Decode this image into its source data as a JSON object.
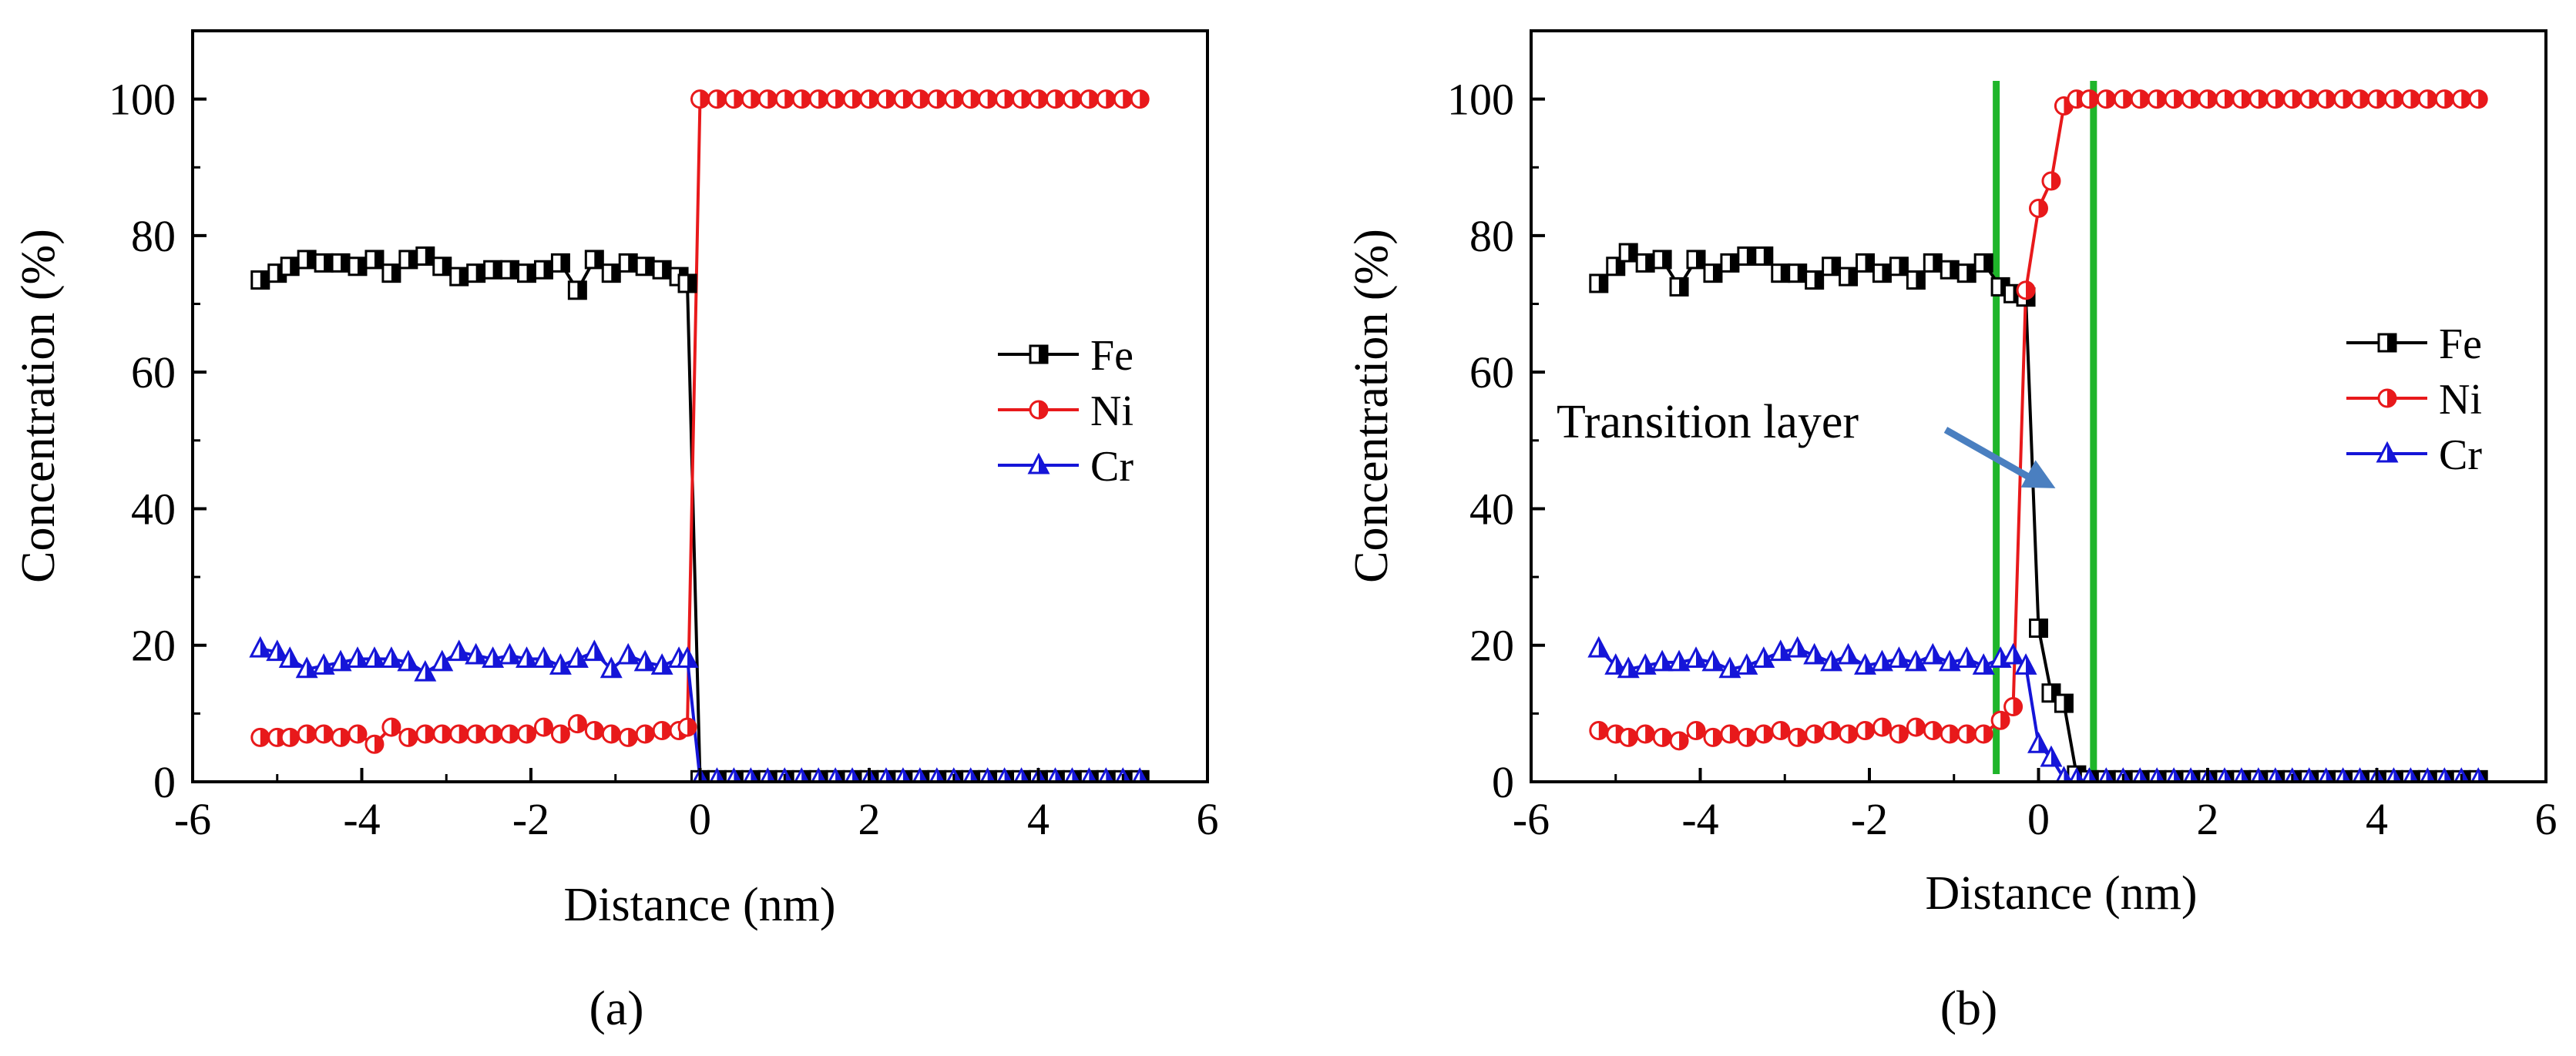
{
  "chart_data": [
    {
      "panel_label": "(a)",
      "type": "line",
      "xlabel": "Distance (nm)",
      "ylabel": "Concentration (%)",
      "xlim": [
        -6,
        6
      ],
      "ylim": [
        0,
        110
      ],
      "xticks": [
        -6,
        -4,
        -2,
        0,
        2,
        4,
        6
      ],
      "yticks": [
        0,
        20,
        40,
        60,
        80,
        100
      ],
      "legend_position": "right",
      "series": [
        {
          "name": "Fe",
          "color": "#000000",
          "marker": "square-half",
          "x": [
            -5.2,
            -5.0,
            -4.85,
            -4.65,
            -4.45,
            -4.25,
            -4.05,
            -3.85,
            -3.65,
            -3.45,
            -3.25,
            -3.05,
            -2.85,
            -2.65,
            -2.45,
            -2.25,
            -2.05,
            -1.85,
            -1.65,
            -1.45,
            -1.25,
            -1.05,
            -0.85,
            -0.65,
            -0.45,
            -0.25,
            -0.15,
            0.0,
            0.2,
            0.4,
            0.6,
            0.8,
            1.0,
            1.2,
            1.4,
            1.6,
            1.8,
            2.0,
            2.2,
            2.4,
            2.6,
            2.8,
            3.0,
            3.2,
            3.4,
            3.6,
            3.8,
            4.0,
            4.2,
            4.4,
            4.6,
            4.8,
            5.0,
            5.2
          ],
          "values": [
            73.5,
            74.5,
            75.5,
            76.5,
            76,
            76,
            75.5,
            76.5,
            74.5,
            76.5,
            77,
            75.5,
            74,
            74.5,
            75,
            75,
            74.5,
            75,
            76,
            72,
            76.5,
            74.5,
            76,
            75.5,
            75,
            74,
            73,
            0.3,
            0.3,
            0.3,
            0.3,
            0.3,
            0.3,
            0.3,
            0.3,
            0.3,
            0.3,
            0.3,
            0.3,
            0.3,
            0.3,
            0.3,
            0.3,
            0.3,
            0.3,
            0.3,
            0.3,
            0.3,
            0.3,
            0.3,
            0.3,
            0.3,
            0.3,
            0.3
          ]
        },
        {
          "name": "Ni",
          "color": "#e8191b",
          "marker": "circle-half",
          "x": [
            -5.2,
            -5.0,
            -4.85,
            -4.65,
            -4.45,
            -4.25,
            -4.05,
            -3.85,
            -3.65,
            -3.45,
            -3.25,
            -3.05,
            -2.85,
            -2.65,
            -2.45,
            -2.25,
            -2.05,
            -1.85,
            -1.65,
            -1.45,
            -1.25,
            -1.05,
            -0.85,
            -0.65,
            -0.45,
            -0.25,
            -0.15,
            0.0,
            0.2,
            0.4,
            0.6,
            0.8,
            1.0,
            1.2,
            1.4,
            1.6,
            1.8,
            2.0,
            2.2,
            2.4,
            2.6,
            2.8,
            3.0,
            3.2,
            3.4,
            3.6,
            3.8,
            4.0,
            4.2,
            4.4,
            4.6,
            4.8,
            5.0,
            5.2
          ],
          "values": [
            6.5,
            6.5,
            6.5,
            7,
            7,
            6.5,
            7,
            5.5,
            8,
            6.5,
            7,
            7,
            7,
            7,
            7,
            7,
            7,
            8,
            7,
            8.5,
            7.5,
            7,
            6.5,
            7,
            7.5,
            7.5,
            8,
            100,
            100,
            100,
            100,
            100,
            100,
            100,
            100,
            100,
            100,
            100,
            100,
            100,
            100,
            100,
            100,
            100,
            100,
            100,
            100,
            100,
            100,
            100,
            100,
            100,
            100,
            100
          ]
        },
        {
          "name": "Cr",
          "color": "#1515d8",
          "marker": "triangle-half",
          "x": [
            -5.2,
            -5.0,
            -4.85,
            -4.65,
            -4.45,
            -4.25,
            -4.05,
            -3.85,
            -3.65,
            -3.45,
            -3.25,
            -3.05,
            -2.85,
            -2.65,
            -2.45,
            -2.25,
            -2.05,
            -1.85,
            -1.65,
            -1.45,
            -1.25,
            -1.05,
            -0.85,
            -0.65,
            -0.45,
            -0.25,
            -0.15,
            0.0,
            0.2,
            0.4,
            0.6,
            0.8,
            1.0,
            1.2,
            1.4,
            1.6,
            1.8,
            2.0,
            2.2,
            2.4,
            2.6,
            2.8,
            3.0,
            3.2,
            3.4,
            3.6,
            3.8,
            4.0,
            4.2,
            4.4,
            4.6,
            4.8,
            5.0,
            5.2
          ],
          "values": [
            19.5,
            19,
            18,
            16.5,
            17,
            17.5,
            18,
            18,
            18,
            17.5,
            16,
            17.5,
            19,
            18.5,
            18,
            18.5,
            18,
            18,
            17,
            18,
            19,
            16.5,
            18.5,
            17.5,
            17,
            18,
            18,
            0.3,
            0.3,
            0.3,
            0.3,
            0.3,
            0.3,
            0.3,
            0.3,
            0.3,
            0.3,
            0.3,
            0.3,
            0.3,
            0.3,
            0.3,
            0.3,
            0.3,
            0.3,
            0.3,
            0.3,
            0.3,
            0.3,
            0.3,
            0.3,
            0.3,
            0.3,
            0.3
          ]
        }
      ]
    },
    {
      "panel_label": "(b)",
      "type": "line",
      "xlabel": "Distance (nm)",
      "ylabel": "Concentration (%)",
      "xlim": [
        -6,
        6
      ],
      "ylim": [
        0,
        110
      ],
      "xticks": [
        -6,
        -4,
        -2,
        0,
        2,
        4,
        6
      ],
      "yticks": [
        0,
        20,
        40,
        60,
        80,
        100
      ],
      "legend_position": "right",
      "annotation": {
        "text": "Transition layer",
        "arrow_to": [
          0.2,
          43
        ]
      },
      "vertical_lines": [
        -0.5,
        0.65
      ],
      "vertical_line_color": "#1fb52a",
      "series": [
        {
          "name": "Fe",
          "color": "#000000",
          "marker": "square-half",
          "x": [
            -5.2,
            -5.0,
            -4.85,
            -4.65,
            -4.45,
            -4.25,
            -4.05,
            -3.85,
            -3.65,
            -3.45,
            -3.25,
            -3.05,
            -2.85,
            -2.65,
            -2.45,
            -2.25,
            -2.05,
            -1.85,
            -1.65,
            -1.45,
            -1.25,
            -1.05,
            -0.85,
            -0.65,
            -0.45,
            -0.3,
            -0.15,
            0.0,
            0.15,
            0.3,
            0.45,
            0.6,
            0.8,
            1.0,
            1.2,
            1.4,
            1.6,
            1.8,
            2.0,
            2.2,
            2.4,
            2.6,
            2.8,
            3.0,
            3.2,
            3.4,
            3.6,
            3.8,
            4.0,
            4.2,
            4.4,
            4.6,
            4.8,
            5.0,
            5.2
          ],
          "values": [
            73,
            75.5,
            77.5,
            76,
            76.5,
            72.5,
            76.5,
            74.5,
            76,
            77,
            77,
            74.5,
            74.5,
            73.5,
            75.5,
            74,
            76,
            74.5,
            75.5,
            73.5,
            76,
            75,
            74.5,
            76,
            72.5,
            71.5,
            71,
            22.5,
            13,
            11.5,
            1,
            0.3,
            0.3,
            0.3,
            0.3,
            0.3,
            0.3,
            0.3,
            0.3,
            0.3,
            0.3,
            0.3,
            0.3,
            0.3,
            0.3,
            0.3,
            0.3,
            0.3,
            0.3,
            0.3,
            0.3,
            0.3,
            0.3,
            0.3,
            0.3
          ]
        },
        {
          "name": "Ni",
          "color": "#e8191b",
          "marker": "circle-half",
          "x": [
            -5.2,
            -5.0,
            -4.85,
            -4.65,
            -4.45,
            -4.25,
            -4.05,
            -3.85,
            -3.65,
            -3.45,
            -3.25,
            -3.05,
            -2.85,
            -2.65,
            -2.45,
            -2.25,
            -2.05,
            -1.85,
            -1.65,
            -1.45,
            -1.25,
            -1.05,
            -0.85,
            -0.65,
            -0.45,
            -0.3,
            -0.15,
            0.0,
            0.15,
            0.3,
            0.45,
            0.6,
            0.8,
            1.0,
            1.2,
            1.4,
            1.6,
            1.8,
            2.0,
            2.2,
            2.4,
            2.6,
            2.8,
            3.0,
            3.2,
            3.4,
            3.6,
            3.8,
            4.0,
            4.2,
            4.4,
            4.6,
            4.8,
            5.0,
            5.2
          ],
          "values": [
            7.5,
            7,
            6.5,
            7,
            6.5,
            6,
            7.5,
            6.5,
            7,
            6.5,
            7,
            7.5,
            6.5,
            7,
            7.5,
            7,
            7.5,
            8,
            7,
            8,
            7.5,
            7,
            7,
            7,
            9,
            11,
            72,
            84,
            88,
            99,
            100,
            100,
            100,
            100,
            100,
            100,
            100,
            100,
            100,
            100,
            100,
            100,
            100,
            100,
            100,
            100,
            100,
            100,
            100,
            100,
            100,
            100,
            100,
            100,
            100
          ]
        },
        {
          "name": "Cr",
          "color": "#1515d8",
          "marker": "triangle-half",
          "x": [
            -5.2,
            -5.0,
            -4.85,
            -4.65,
            -4.45,
            -4.25,
            -4.05,
            -3.85,
            -3.65,
            -3.45,
            -3.25,
            -3.05,
            -2.85,
            -2.65,
            -2.45,
            -2.25,
            -2.05,
            -1.85,
            -1.65,
            -1.45,
            -1.25,
            -1.05,
            -0.85,
            -0.65,
            -0.45,
            -0.3,
            -0.15,
            0.0,
            0.15,
            0.3,
            0.45,
            0.6,
            0.8,
            1.0,
            1.2,
            1.4,
            1.6,
            1.8,
            2.0,
            2.2,
            2.4,
            2.6,
            2.8,
            3.0,
            3.2,
            3.4,
            3.6,
            3.8,
            4.0,
            4.2,
            4.4,
            4.6,
            4.8,
            5.0,
            5.2
          ],
          "values": [
            19.5,
            17,
            16.5,
            17,
            17.5,
            17.5,
            18,
            17.5,
            16.5,
            17,
            18,
            19,
            19.5,
            18.5,
            17.5,
            18.5,
            17,
            17.5,
            18,
            17.5,
            18.5,
            17.5,
            18,
            17,
            18,
            18.5,
            17,
            5.5,
            3.5,
            0.5,
            0.3,
            0.3,
            0.3,
            0.3,
            0.3,
            0.3,
            0.3,
            0.3,
            0.3,
            0.3,
            0.3,
            0.3,
            0.3,
            0.3,
            0.3,
            0.3,
            0.3,
            0.3,
            0.3,
            0.3,
            0.3,
            0.3,
            0.3,
            0.3,
            0.3
          ]
        }
      ]
    }
  ]
}
